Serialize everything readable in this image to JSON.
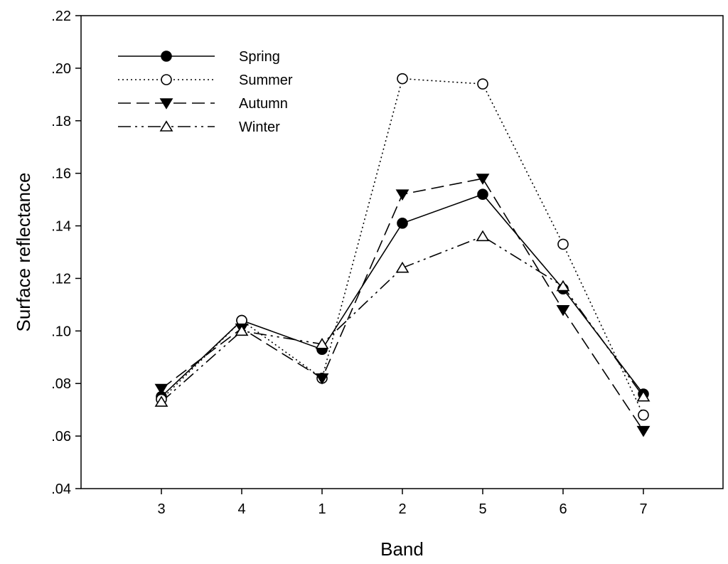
{
  "chart_data": {
    "type": "line",
    "xlabel": "Band",
    "ylabel": "Surface reflectance",
    "categories": [
      "3",
      "4",
      "1",
      "2",
      "5",
      "6",
      "7"
    ],
    "ylim": [
      0.04,
      0.22
    ],
    "yticks": [
      0.04,
      0.06,
      0.08,
      0.1,
      0.12,
      0.14,
      0.16,
      0.18,
      0.2,
      0.22
    ],
    "ytick_labels": [
      ".04",
      ".06",
      ".08",
      ".10",
      ".12",
      ".14",
      ".16",
      ".18",
      ".20",
      ".22"
    ],
    "grid": false,
    "legend_position": "top-left",
    "series": [
      {
        "name": "Spring",
        "values": [
          0.075,
          0.104,
          0.093,
          0.141,
          0.152,
          0.116,
          0.076
        ],
        "line": "solid",
        "marker": "circle",
        "filled": true
      },
      {
        "name": "Summer",
        "values": [
          0.074,
          0.104,
          0.082,
          0.196,
          0.194,
          0.133,
          0.068
        ],
        "line": "dotted",
        "marker": "circle",
        "filled": false
      },
      {
        "name": "Autumn",
        "values": [
          0.078,
          0.101,
          0.082,
          0.152,
          0.158,
          0.108,
          0.062
        ],
        "line": "dashed",
        "marker": "triangle-down",
        "filled": true
      },
      {
        "name": "Winter",
        "values": [
          0.073,
          0.1,
          0.095,
          0.124,
          0.136,
          0.117,
          0.075
        ],
        "line": "dashdotdot",
        "marker": "triangle-up",
        "filled": false
      }
    ]
  }
}
